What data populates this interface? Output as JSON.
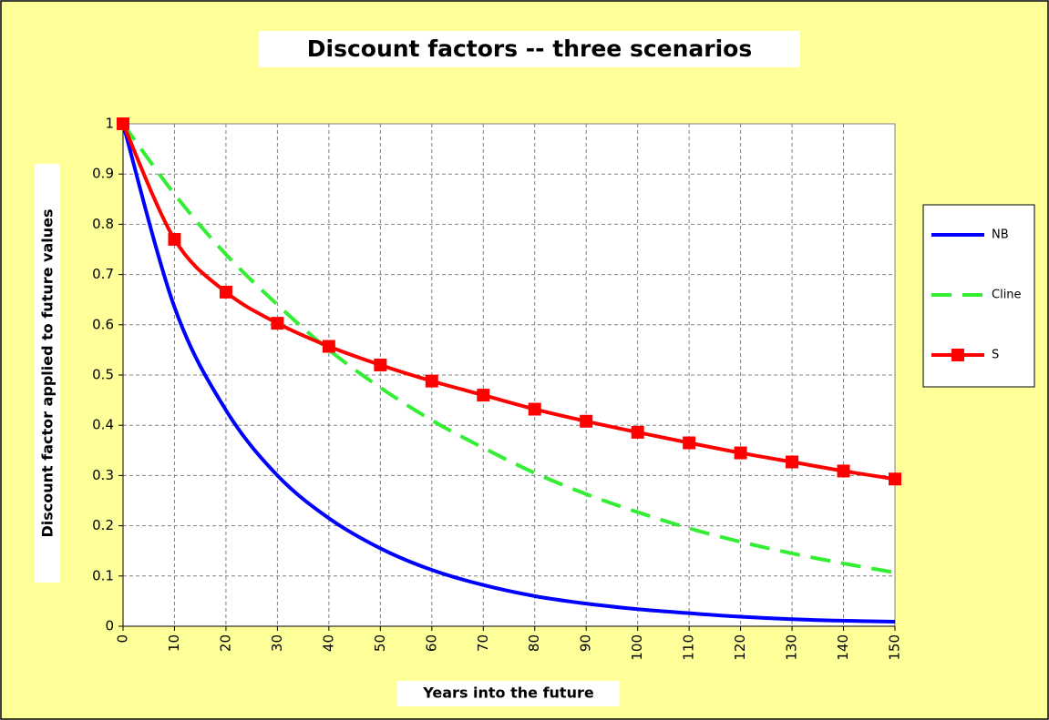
{
  "chart_data": {
    "type": "line",
    "title": "Discount factors -- three scenarios",
    "x_label": "Years into the future",
    "y_label": "Discount factor applied to future values",
    "x": [
      0,
      10,
      20,
      30,
      40,
      50,
      60,
      70,
      80,
      90,
      100,
      110,
      120,
      130,
      140,
      150
    ],
    "series": [
      {
        "name": "NB",
        "color": "#0000ff",
        "line_style": "solid",
        "values": [
          1,
          0.635,
          0.43,
          0.3,
          0.215,
          0.155,
          0.112,
          0.082,
          0.06,
          0.045,
          0.034,
          0.026,
          0.019,
          0.014,
          0.011,
          0.009
        ]
      },
      {
        "name": "Cline",
        "color": "#33ee33",
        "line_style": "dashed",
        "values": [
          1,
          0.86,
          0.74,
          0.64,
          0.55,
          0.475,
          0.41,
          0.355,
          0.305,
          0.263,
          0.227,
          0.195,
          0.168,
          0.145,
          0.125,
          0.107
        ]
      },
      {
        "name": "S",
        "color": "#ff0000",
        "line_style": "solid",
        "marker": "square",
        "values": [
          1,
          0.77,
          0.665,
          0.603,
          0.557,
          0.52,
          0.488,
          0.46,
          0.432,
          0.408,
          0.386,
          0.365,
          0.345,
          0.327,
          0.309,
          0.293
        ]
      }
    ],
    "xlim": [
      0,
      150
    ],
    "xticks": [
      0,
      10,
      20,
      30,
      40,
      50,
      60,
      70,
      80,
      90,
      100,
      110,
      120,
      130,
      140,
      150
    ],
    "ylim": [
      0,
      1
    ],
    "yticks": [
      0,
      0.1,
      0.2,
      0.3,
      0.4,
      0.5,
      0.6,
      0.7,
      0.8,
      0.9,
      1
    ],
    "grid": true,
    "legend": "right"
  }
}
